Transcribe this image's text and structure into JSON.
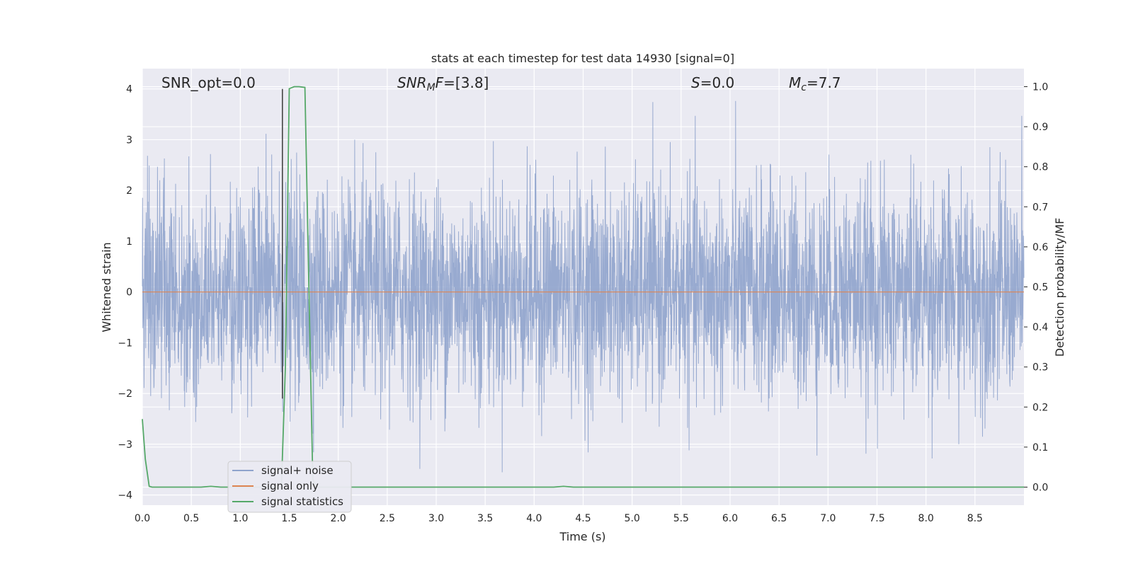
{
  "chart_data": {
    "type": "line",
    "title": "stats at each timestep for test data 14930 [signal=0]",
    "xlabel": "Time (s)",
    "ylabel": "Whitened strain",
    "ylabel_right": "Detection probability/MF",
    "xlim": [
      0.0,
      9.0
    ],
    "ylim": [
      -4.2,
      4.4
    ],
    "ylim_right": [
      -0.045,
      1.045
    ],
    "x_ticks": [
      "0.0",
      "0.5",
      "1.0",
      "1.5",
      "2.0",
      "2.5",
      "3.0",
      "3.5",
      "4.0",
      "4.5",
      "5.0",
      "5.5",
      "6.0",
      "6.5",
      "7.0",
      "7.5",
      "8.0",
      "8.5"
    ],
    "y_ticks": [
      "4",
      "3",
      "2",
      "1",
      "0",
      "−1",
      "−2",
      "−3",
      "−4"
    ],
    "y_ticks_right": [
      "1.0",
      "0.9",
      "0.8",
      "0.7",
      "0.6",
      "0.5",
      "0.4",
      "0.3",
      "0.2",
      "0.1",
      "0.0"
    ],
    "grid": true,
    "legend_position": "lower-left",
    "annotations": {
      "snr_opt": "SNR_opt=0.0",
      "snr_mf_main": "SNR",
      "snr_mf_sub": "M",
      "snr_mf_tail": "F",
      "snr_mf_value": "=[3.8]",
      "s_label": "S",
      "s_value": "=0.0",
      "mc_main": "M",
      "mc_sub": "c",
      "mc_value": "=7.7"
    },
    "series": [
      {
        "name": "signal+ noise",
        "color": "#8fa3cc",
        "description_range": [
          -3.7,
          4.0
        ]
      },
      {
        "name": "signal only",
        "color": "#dd8452",
        "x": [
          0.0,
          9.0
        ],
        "y": [
          0.0,
          0.0
        ]
      },
      {
        "name": "signal statistics",
        "color": "#55a868",
        "axis": "right",
        "x": [
          0.0,
          0.03,
          0.07,
          0.1,
          0.15,
          0.6,
          0.7,
          0.8,
          1.42,
          1.46,
          1.5,
          1.55,
          1.6,
          1.66,
          1.7,
          1.74,
          1.78,
          4.2,
          4.3,
          4.4,
          9.0
        ],
        "y": [
          0.17,
          0.07,
          0.002,
          0.0,
          0.0,
          0.0,
          0.002,
          0.0,
          0.0,
          0.3,
          0.995,
          1.0,
          1.0,
          0.998,
          0.5,
          0.02,
          0.0,
          0.0,
          0.002,
          0.0,
          0.0
        ]
      }
    ],
    "vertical_marker": {
      "x": 1.43,
      "y_top": 4.0,
      "y_bottom": -2.1,
      "color": "#3a3a3a"
    }
  }
}
